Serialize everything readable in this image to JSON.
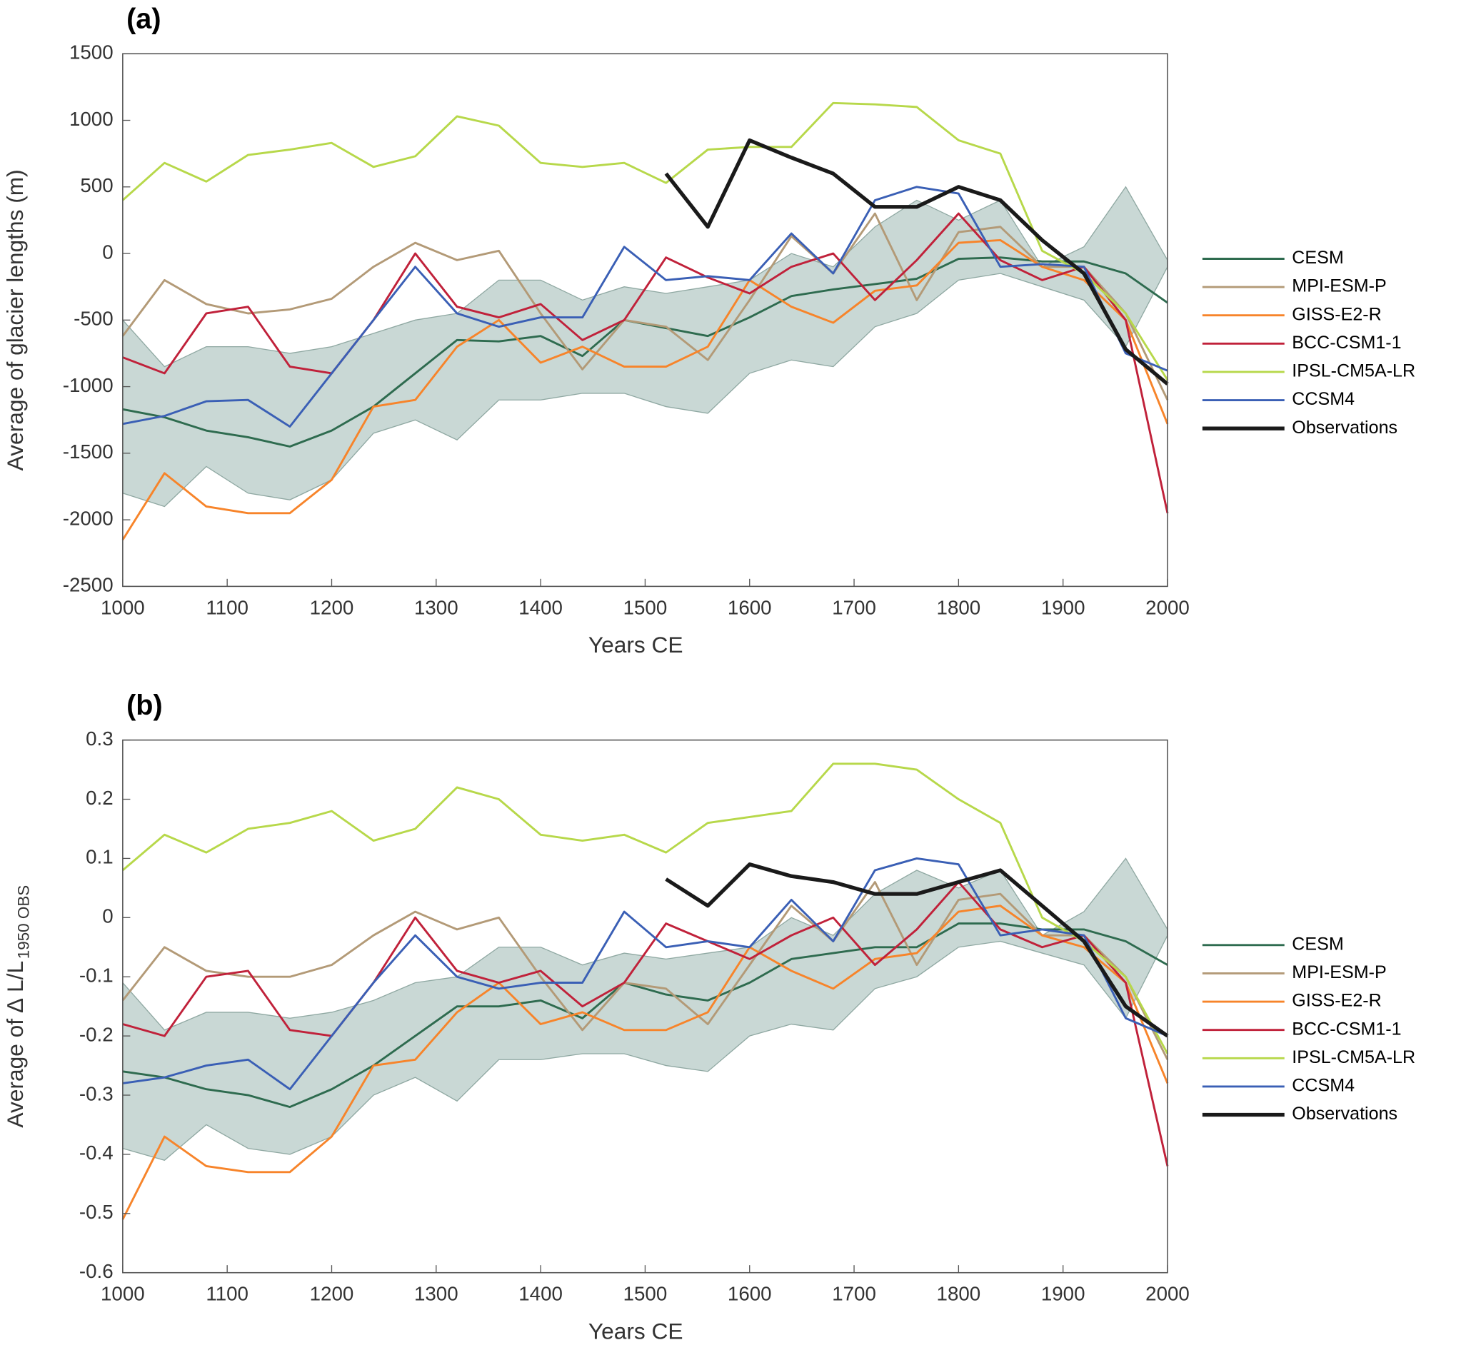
{
  "chart_data": [
    {
      "type": "line",
      "panel_label": "(a)",
      "xlabel": "Years CE",
      "ylabel": "Average of glacier lengths (m)",
      "xlim": [
        1000,
        2000
      ],
      "ylim": [
        -2500,
        1500
      ],
      "xticks": [
        1000,
        1100,
        1200,
        1300,
        1400,
        1500,
        1600,
        1700,
        1800,
        1900,
        2000
      ],
      "yticks": [
        -2500,
        -2000,
        -1500,
        -1000,
        -500,
        0,
        500,
        1000,
        1500
      ],
      "x": [
        1000,
        1040,
        1080,
        1120,
        1160,
        1200,
        1240,
        1280,
        1320,
        1360,
        1400,
        1440,
        1480,
        1520,
        1560,
        1600,
        1640,
        1680,
        1720,
        1760,
        1800,
        1840,
        1880,
        1920,
        1960,
        2000
      ],
      "band": {
        "color": "#c9d8d5",
        "upper": [
          -500,
          -850,
          -700,
          -700,
          -750,
          -700,
          -600,
          -500,
          -450,
          -200,
          -200,
          -350,
          -250,
          -300,
          -250,
          -200,
          0,
          -100,
          200,
          400,
          250,
          400,
          -100,
          50,
          500,
          -50
        ],
        "lower": [
          -1800,
          -1900,
          -1600,
          -1800,
          -1850,
          -1700,
          -1350,
          -1250,
          -1400,
          -1100,
          -1100,
          -1050,
          -1050,
          -1150,
          -1200,
          -900,
          -800,
          -850,
          -550,
          -450,
          -200,
          -150,
          -250,
          -350,
          -700,
          -100
        ]
      },
      "series": [
        {
          "name": "CESM",
          "color": "#2e6b4f",
          "values": [
            -1170,
            -1230,
            -1330,
            -1380,
            -1450,
            -1330,
            -1150,
            -900,
            -650,
            -660,
            -620,
            -770,
            -500,
            -560,
            -620,
            -480,
            -320,
            -270,
            -230,
            -190,
            -40,
            -30,
            -60,
            -60,
            -150,
            -370
          ]
        },
        {
          "name": "MPI-ESM-P",
          "color": "#b39a77",
          "values": [
            -620,
            -200,
            -380,
            -450,
            -420,
            -340,
            -100,
            80,
            -50,
            20,
            -450,
            -870,
            -500,
            -550,
            -800,
            -350,
            130,
            -150,
            300,
            -350,
            160,
            200,
            -100,
            -100,
            -450,
            -1100
          ]
        },
        {
          "name": "GISS-E2-R",
          "color": "#f7842a",
          "values": [
            -2150,
            -1650,
            -1900,
            -1950,
            -1950,
            -1700,
            -1150,
            -1100,
            -700,
            -500,
            -820,
            -700,
            -850,
            -850,
            -700,
            -200,
            -400,
            -520,
            -280,
            -240,
            80,
            100,
            -100,
            -200,
            -500,
            -1280
          ]
        },
        {
          "name": "BCC-CSM1-1",
          "color": "#c0213a",
          "values": [
            -780,
            -900,
            -450,
            -400,
            -850,
            -900,
            -500,
            0,
            -400,
            -480,
            -380,
            -650,
            -500,
            -30,
            -180,
            -300,
            -100,
            0,
            -350,
            -50,
            300,
            -50,
            -200,
            -100,
            -500,
            -1950
          ]
        },
        {
          "name": "IPSL-CM5A-LR",
          "color": "#b7d84a",
          "values": [
            400,
            680,
            540,
            740,
            780,
            830,
            650,
            730,
            1030,
            960,
            680,
            650,
            680,
            530,
            780,
            800,
            800,
            1130,
            1120,
            1100,
            850,
            750,
            20,
            -150,
            -450,
            -950
          ]
        },
        {
          "name": "CCSM4",
          "color": "#3a5fb5",
          "values": [
            -1280,
            -1220,
            -1110,
            -1100,
            -1300,
            -900,
            -500,
            -100,
            -450,
            -550,
            -480,
            -480,
            50,
            -200,
            -170,
            -200,
            150,
            -150,
            400,
            500,
            450,
            -100,
            -80,
            -100,
            -750,
            -880
          ]
        },
        {
          "name": "Observations",
          "color": "#1a1a1a",
          "linewidth": 4,
          "values": [
            null,
            null,
            null,
            null,
            null,
            null,
            null,
            null,
            null,
            null,
            null,
            null,
            null,
            600,
            200,
            850,
            720,
            600,
            350,
            350,
            500,
            400,
            100,
            -150,
            -720,
            -980
          ]
        }
      ]
    },
    {
      "type": "line",
      "panel_label": "(b)",
      "xlabel": "Years CE",
      "ylabel": "Average of ∆ L/L",
      "ylabel_sub": "1950 OBS",
      "xlim": [
        1000,
        2000
      ],
      "ylim": [
        -0.6,
        0.3
      ],
      "xticks": [
        1000,
        1100,
        1200,
        1300,
        1400,
        1500,
        1600,
        1700,
        1800,
        1900,
        2000
      ],
      "yticks": [
        -0.6,
        -0.5,
        -0.4,
        -0.3,
        -0.2,
        -0.1,
        0,
        0.1,
        0.2,
        0.3
      ],
      "x": [
        1000,
        1040,
        1080,
        1120,
        1160,
        1200,
        1240,
        1280,
        1320,
        1360,
        1400,
        1440,
        1480,
        1520,
        1560,
        1600,
        1640,
        1680,
        1720,
        1760,
        1800,
        1840,
        1880,
        1920,
        1960,
        2000
      ],
      "band": {
        "color": "#c9d8d5",
        "upper": [
          -0.11,
          -0.19,
          -0.16,
          -0.16,
          -0.17,
          -0.16,
          -0.14,
          -0.11,
          -0.1,
          -0.05,
          -0.05,
          -0.08,
          -0.06,
          -0.07,
          -0.06,
          -0.05,
          0,
          -0.03,
          0.04,
          0.08,
          0.05,
          0.08,
          -0.03,
          0.01,
          0.1,
          -0.02
        ],
        "lower": [
          -0.39,
          -0.41,
          -0.35,
          -0.39,
          -0.4,
          -0.37,
          -0.3,
          -0.27,
          -0.31,
          -0.24,
          -0.24,
          -0.23,
          -0.23,
          -0.25,
          -0.26,
          -0.2,
          -0.18,
          -0.19,
          -0.12,
          -0.1,
          -0.05,
          -0.04,
          -0.06,
          -0.08,
          -0.17,
          -0.03
        ]
      },
      "series": [
        {
          "name": "CESM",
          "color": "#2e6b4f",
          "values": [
            -0.26,
            -0.27,
            -0.29,
            -0.3,
            -0.32,
            -0.29,
            -0.25,
            -0.2,
            -0.15,
            -0.15,
            -0.14,
            -0.17,
            -0.11,
            -0.13,
            -0.14,
            -0.11,
            -0.07,
            -0.06,
            -0.05,
            -0.05,
            -0.01,
            -0.01,
            -0.02,
            -0.02,
            -0.04,
            -0.08
          ]
        },
        {
          "name": "MPI-ESM-P",
          "color": "#b39a77",
          "values": [
            -0.14,
            -0.05,
            -0.09,
            -0.1,
            -0.1,
            -0.08,
            -0.03,
            0.01,
            -0.02,
            0,
            -0.1,
            -0.19,
            -0.11,
            -0.12,
            -0.18,
            -0.08,
            0.02,
            -0.04,
            0.06,
            -0.08,
            0.03,
            0.04,
            -0.03,
            -0.03,
            -0.1,
            -0.24
          ]
        },
        {
          "name": "GISS-E2-R",
          "color": "#f7842a",
          "values": [
            -0.51,
            -0.37,
            -0.42,
            -0.43,
            -0.43,
            -0.37,
            -0.25,
            -0.24,
            -0.16,
            -0.11,
            -0.18,
            -0.16,
            -0.19,
            -0.19,
            -0.16,
            -0.05,
            -0.09,
            -0.12,
            -0.07,
            -0.06,
            0.01,
            0.02,
            -0.03,
            -0.05,
            -0.11,
            -0.28
          ]
        },
        {
          "name": "BCC-CSM1-1",
          "color": "#c0213a",
          "values": [
            -0.18,
            -0.2,
            -0.1,
            -0.09,
            -0.19,
            -0.2,
            -0.11,
            0,
            -0.09,
            -0.11,
            -0.09,
            -0.15,
            -0.11,
            -0.01,
            -0.04,
            -0.07,
            -0.03,
            0,
            -0.08,
            -0.02,
            0.06,
            -0.02,
            -0.05,
            -0.03,
            -0.11,
            -0.42
          ]
        },
        {
          "name": "IPSL-CM5A-LR",
          "color": "#b7d84a",
          "values": [
            0.08,
            0.14,
            0.11,
            0.15,
            0.16,
            0.18,
            0.13,
            0.15,
            0.22,
            0.2,
            0.14,
            0.13,
            0.14,
            0.11,
            0.16,
            0.17,
            0.18,
            0.26,
            0.26,
            0.25,
            0.2,
            0.16,
            0,
            -0.04,
            -0.1,
            -0.23
          ]
        },
        {
          "name": "CCSM4",
          "color": "#3a5fb5",
          "values": [
            -0.28,
            -0.27,
            -0.25,
            -0.24,
            -0.29,
            -0.2,
            -0.11,
            -0.03,
            -0.1,
            -0.12,
            -0.11,
            -0.11,
            0.01,
            -0.05,
            -0.04,
            -0.05,
            0.03,
            -0.04,
            0.08,
            0.1,
            0.09,
            -0.03,
            -0.02,
            -0.03,
            -0.17,
            -0.2
          ]
        },
        {
          "name": "Observations",
          "color": "#1a1a1a",
          "linewidth": 4,
          "values": [
            null,
            null,
            null,
            null,
            null,
            null,
            null,
            null,
            null,
            null,
            null,
            null,
            null,
            0.065,
            0.02,
            0.09,
            0.07,
            0.06,
            0.04,
            0.04,
            0.06,
            0.08,
            0.02,
            -0.04,
            -0.15,
            -0.2
          ]
        }
      ]
    }
  ]
}
